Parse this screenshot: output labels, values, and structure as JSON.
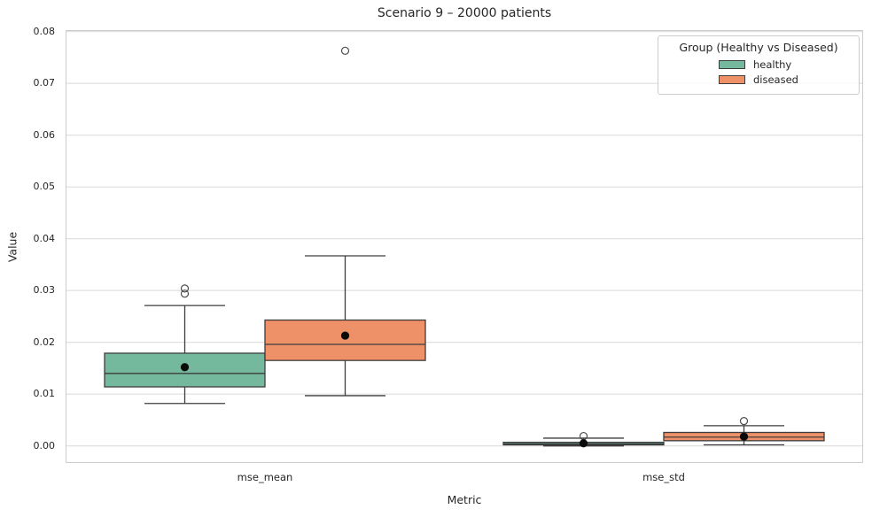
{
  "chart_data": {
    "type": "grouped_boxplot",
    "title": "Scenario 9 – 20000 patients",
    "xlabel": "Metric",
    "ylabel": "Value",
    "categories": [
      "mse_mean",
      "mse_std"
    ],
    "ytick_labels": [
      "0.00",
      "0.01",
      "0.02",
      "0.03",
      "0.04",
      "0.05",
      "0.06",
      "0.07",
      "0.08"
    ],
    "yticks": [
      0.0,
      0.01,
      0.02,
      0.03,
      0.04,
      0.05,
      0.06,
      0.07,
      0.08
    ],
    "ylim": [
      -0.0033,
      0.0802
    ],
    "grid": "horizontal",
    "grid_color": "#dddddd",
    "edge_color": "#3d3d3d",
    "mean_marker_color": "#0a0a0a",
    "outlier_edge_color": "#4c4c4c",
    "legend": {
      "title": "Group (Healthy vs Diseased)",
      "position": "upper right",
      "entries": [
        {
          "label": "healthy"
        },
        {
          "label": "diseased"
        }
      ]
    },
    "series": [
      {
        "name": "healthy",
        "color": "#74b89e",
        "boxes": [
          {
            "category": "mse_mean",
            "whisker_low": 0.0082,
            "q1": 0.0114,
            "median": 0.014,
            "q3": 0.0179,
            "whisker_high": 0.0271,
            "mean": 0.0152,
            "outliers": [
              0.0294,
              0.0304
            ]
          },
          {
            "category": "mse_std",
            "whisker_low": 0.0,
            "q1": 0.0002,
            "median": 0.0004,
            "q3": 0.0007,
            "whisker_high": 0.0015,
            "mean": 0.0005,
            "outliers": [
              0.0019
            ]
          }
        ]
      },
      {
        "name": "diseased",
        "color": "#ee9068",
        "boxes": [
          {
            "category": "mse_mean",
            "whisker_low": 0.0097,
            "q1": 0.0165,
            "median": 0.0196,
            "q3": 0.0243,
            "whisker_high": 0.0367,
            "mean": 0.0213,
            "outliers": [
              0.0763
            ]
          },
          {
            "category": "mse_std",
            "whisker_low": 0.0002,
            "q1": 0.001,
            "median": 0.0017,
            "q3": 0.0026,
            "whisker_high": 0.0039,
            "mean": 0.0018,
            "outliers": [
              0.0048
            ]
          }
        ]
      }
    ]
  }
}
